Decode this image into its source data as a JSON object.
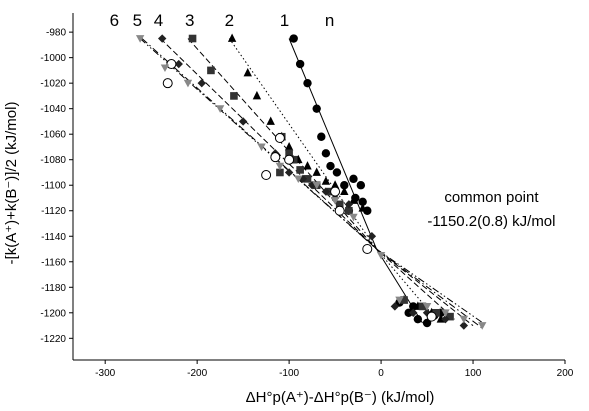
{
  "chart_data": {
    "type": "scatter",
    "xlabel": "ΔH°p(A⁺)-ΔH°p(B⁻) (kJ/mol)",
    "ylabel": "-[k(A⁺)+k(B⁻)]/2 (kJ/mol)",
    "xlim": [
      -335,
      200
    ],
    "ylim": [
      -1237,
      -965
    ],
    "xticks": [
      -300,
      -200,
      -100,
      0,
      100,
      200
    ],
    "yticks": [
      -980,
      -1000,
      -1020,
      -1040,
      -1060,
      -1080,
      -1100,
      -1120,
      -1140,
      -1160,
      -1180,
      -1200,
      -1220
    ],
    "grid": false,
    "annotation": {
      "line1": "common point",
      "line2": "-1150.2(0.8) kJ/mol",
      "x": 120,
      "y": -1113
    },
    "series_header": {
      "label": "n",
      "x": -56,
      "y": -975
    },
    "series": [
      {
        "name": "1",
        "label_pos": {
          "x": -105,
          "y": -975
        },
        "color": "#000000",
        "marker": "circle-filled",
        "line": "solid",
        "fit": [
          [
            -100,
            -985
          ],
          [
            -5,
            -1150
          ],
          [
            45,
            -1208
          ]
        ],
        "points": [
          [
            -95,
            -985
          ],
          [
            -88,
            -1005
          ],
          [
            -80,
            -1020
          ],
          [
            -70,
            -1040
          ],
          [
            -65,
            -1062
          ],
          [
            -60,
            -1075
          ],
          [
            -55,
            -1085
          ],
          [
            -48,
            -1090
          ],
          [
            -40,
            -1100
          ],
          [
            -30,
            -1095
          ],
          [
            -22,
            -1100
          ],
          [
            -28,
            -1110
          ],
          [
            -35,
            -1120
          ],
          [
            -20,
            -1113
          ],
          [
            -15,
            -1120
          ],
          [
            20,
            -1192
          ],
          [
            30,
            -1200
          ],
          [
            40,
            -1205
          ],
          [
            50,
            -1208
          ],
          [
            58,
            -1202
          ],
          [
            65,
            -1200
          ],
          [
            35,
            -1195
          ]
        ]
      },
      {
        "name": "2",
        "label_pos": {
          "x": -165,
          "y": -975
        },
        "color": "#000000",
        "marker": "triangle-filled",
        "line": "dotted",
        "fit": [
          [
            -165,
            -985
          ],
          [
            -5,
            -1150
          ],
          [
            60,
            -1205
          ]
        ],
        "points": [
          [
            -162,
            -985
          ],
          [
            -145,
            -1012
          ],
          [
            -135,
            -1030
          ],
          [
            -120,
            -1050
          ],
          [
            -108,
            -1062
          ],
          [
            -100,
            -1070
          ],
          [
            -90,
            -1080
          ],
          [
            -80,
            -1085
          ],
          [
            -70,
            -1090
          ],
          [
            -60,
            -1097
          ],
          [
            -50,
            -1100
          ],
          [
            -40,
            -1105
          ],
          [
            -30,
            -1112
          ],
          [
            -20,
            -1118
          ],
          [
            25,
            -1190
          ],
          [
            40,
            -1195
          ],
          [
            55,
            -1200
          ],
          [
            65,
            -1205
          ]
        ]
      },
      {
        "name": "3",
        "label_pos": {
          "x": -208,
          "y": -975
        },
        "color": "#333333",
        "marker": "square-filled",
        "line": "dashed",
        "fit": [
          [
            -210,
            -985
          ],
          [
            -5,
            -1150
          ],
          [
            80,
            -1205
          ]
        ],
        "points": [
          [
            -205,
            -985
          ],
          [
            -185,
            -1010
          ],
          [
            -160,
            -1030
          ],
          [
            -108,
            -1062
          ],
          [
            -100,
            -1075
          ],
          [
            -95,
            -1080
          ],
          [
            -88,
            -1088
          ],
          [
            -80,
            -1095
          ],
          [
            -110,
            -1090
          ],
          [
            -70,
            -1100
          ],
          [
            -55,
            -1105
          ],
          [
            -45,
            -1115
          ],
          [
            -35,
            -1120
          ],
          [
            25,
            -1190
          ],
          [
            45,
            -1195
          ],
          [
            60,
            -1200
          ],
          [
            75,
            -1203
          ]
        ]
      },
      {
        "name": "4",
        "label_pos": {
          "x": -242,
          "y": -975
        },
        "color": "#222222",
        "marker": "diamond-filled",
        "line": "dashed",
        "fit": [
          [
            -240,
            -985
          ],
          [
            -5,
            -1150
          ],
          [
            100,
            -1210
          ]
        ],
        "points": [
          [
            -238,
            -985
          ],
          [
            -220,
            -1005
          ],
          [
            -195,
            -1020
          ],
          [
            -150,
            -1050
          ],
          [
            -115,
            -1075
          ],
          [
            -100,
            -1090
          ],
          [
            -85,
            -1095
          ],
          [
            -75,
            -1100
          ],
          [
            -60,
            -1105
          ],
          [
            -50,
            -1110
          ],
          [
            -35,
            -1115
          ],
          [
            -10,
            -1140
          ],
          [
            15,
            -1195
          ],
          [
            35,
            -1200
          ],
          [
            50,
            -1200
          ],
          [
            70,
            -1205
          ],
          [
            90,
            -1210
          ]
        ]
      },
      {
        "name": "5",
        "label_pos": {
          "x": -265,
          "y": -975
        },
        "color": "#000000",
        "marker": "circle-open",
        "line": "dashdot",
        "fit": [
          [
            -260,
            -985
          ],
          [
            -5,
            -1150
          ],
          [
            110,
            -1212
          ]
        ],
        "points": [
          [
            -228,
            -1005
          ],
          [
            -232,
            -1020
          ],
          [
            -110,
            -1063
          ],
          [
            -115,
            -1078
          ],
          [
            -100,
            -1080
          ],
          [
            -125,
            -1092
          ],
          [
            -50,
            -1105
          ],
          [
            -45,
            -1120
          ],
          [
            -15,
            -1150
          ],
          [
            55,
            -1203
          ]
        ]
      },
      {
        "name": "6",
        "label_pos": {
          "x": -290,
          "y": -975
        },
        "color": "#888888",
        "marker": "triangle-down-filled",
        "line": "dashdotdot",
        "fit": [
          [
            -262,
            -985
          ],
          [
            -5,
            -1150
          ],
          [
            115,
            -1210
          ]
        ],
        "points": [
          [
            -262,
            -985
          ],
          [
            -235,
            -1008
          ],
          [
            -210,
            -1020
          ],
          [
            -175,
            -1040
          ],
          [
            -130,
            -1070
          ],
          [
            -110,
            -1085
          ],
          [
            -90,
            -1095
          ],
          [
            -70,
            -1100
          ],
          [
            -50,
            -1112
          ],
          [
            -30,
            -1125
          ],
          [
            0,
            -1155
          ],
          [
            20,
            -1190
          ],
          [
            50,
            -1195
          ],
          [
            70,
            -1200
          ],
          [
            90,
            -1205
          ],
          [
            110,
            -1210
          ]
        ]
      }
    ]
  }
}
